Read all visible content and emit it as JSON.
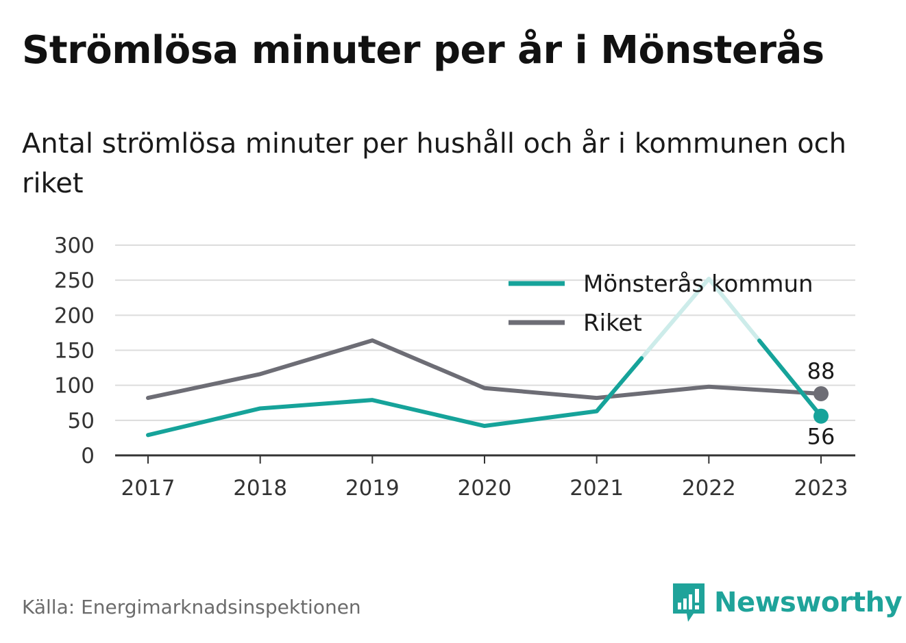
{
  "title": "Strömlösa minuter per år i Mönsterås",
  "subtitle": "Antal strömlösa minuter per hushåll och år i kommunen och riket",
  "source": "Källa: Energimarknadsinspektionen",
  "brand": {
    "name": "Newsworthy",
    "icon": "newsworthy-logo-icon",
    "color": "#1fa39a"
  },
  "chart_data": {
    "type": "line",
    "x": [
      "2017",
      "2018",
      "2019",
      "2020",
      "2021",
      "2022",
      "2023"
    ],
    "yticks": [
      "0",
      "50",
      "100",
      "150",
      "200",
      "250",
      "300"
    ],
    "ylim": [
      0,
      300
    ],
    "grid": true,
    "legend_position": "top-right",
    "series": [
      {
        "name": "Mönsterås kommun",
        "color": "#16a39a",
        "values": [
          29,
          67,
          79,
          42,
          63,
          252,
          56
        ],
        "end_label": "56",
        "faded_segment": "2021-2023"
      },
      {
        "name": "Riket",
        "color": "#6d6d75",
        "values": [
          82,
          116,
          164,
          96,
          82,
          98,
          88
        ],
        "end_label": "88"
      }
    ]
  }
}
